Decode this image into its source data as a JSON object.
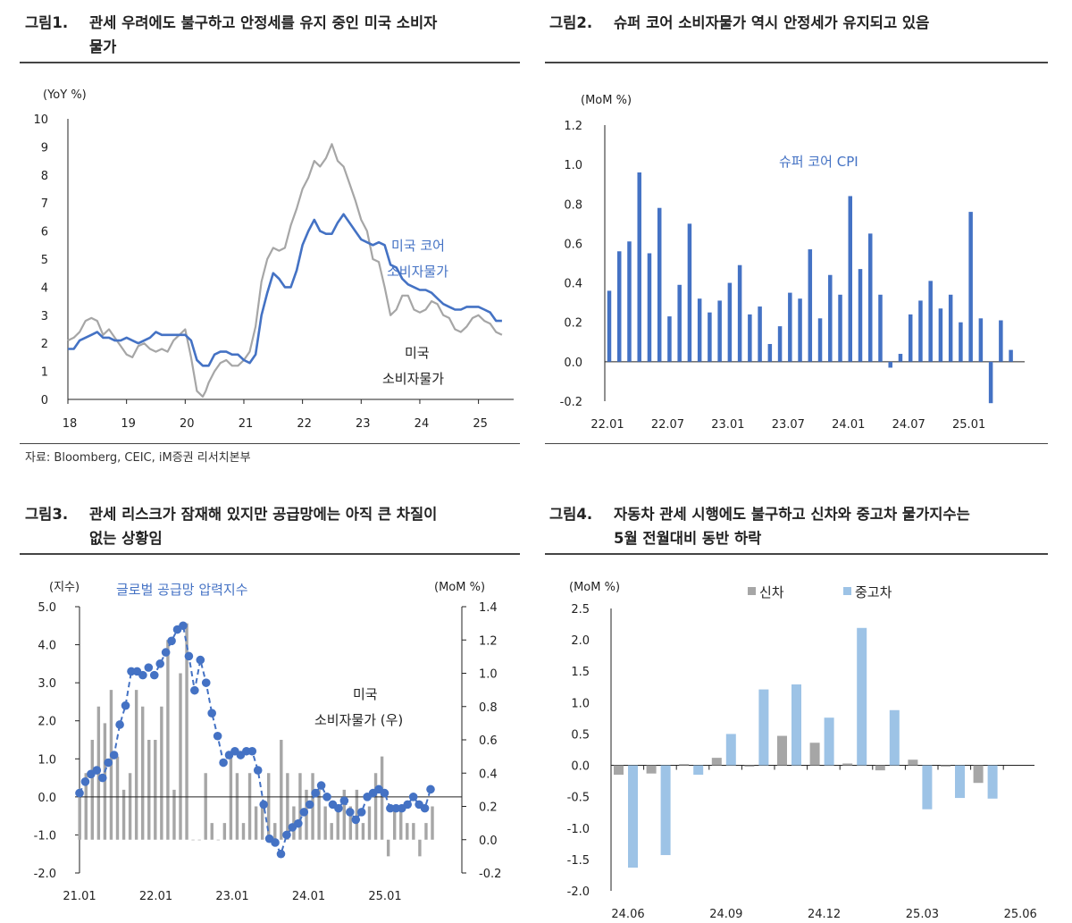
{
  "titles": {
    "p1_num": "그림1.",
    "p1_line1": "관세 우려에도 불구하고 안정세를 유지 중인 미국 소비자",
    "p1_line2": "물가",
    "p2_num": "그림2.",
    "p2_line1": "슈퍼 코어 소비자물가 역시 안정세가 유지되고 있음",
    "p3_num": "그림3.",
    "p3_line1": "관세 리스크가 잠재해 있지만 공급망에는 아직 큰 차질이",
    "p3_line2": "없는 상황임",
    "p4_num": "그림4.",
    "p4_line1": "자동차 관세 시행에도 불구하고 신차와 중고차 물가지수는",
    "p4_line2": "5월 전월대비 동반 하락"
  },
  "source": "자료: Bloomberg, CEIC, iM증권 리서치본부",
  "chart_data": [
    {
      "type": "line",
      "title": "관세 우려에도 불구하고 안정세를 유지 중인 미국 소비자 물가",
      "unit_label": "(YoY %)",
      "ylim": [
        0,
        10
      ],
      "y_ticks": [
        "0",
        "1",
        "2",
        "3",
        "4",
        "5",
        "6",
        "7",
        "8",
        "9",
        "10"
      ],
      "x_ticks": [
        "18",
        "19",
        "20",
        "21",
        "22",
        "23",
        "24",
        "25"
      ],
      "x_range": [
        2018.0,
        2025.6
      ],
      "series": [
        {
          "name": "미국 코어 소비자물가",
          "name_line1": "미국 코어",
          "name_line2": "소비자물가",
          "color": "#4472C4",
          "x": [
            2018.0,
            2018.1,
            2018.2,
            2018.3,
            2018.4,
            2018.5,
            2018.6,
            2018.7,
            2018.8,
            2018.9,
            2019.0,
            2019.1,
            2019.2,
            2019.3,
            2019.4,
            2019.5,
            2019.6,
            2019.7,
            2019.8,
            2019.9,
            2020.0,
            2020.1,
            2020.2,
            2020.3,
            2020.35,
            2020.4,
            2020.5,
            2020.6,
            2020.7,
            2020.8,
            2020.9,
            2021.0,
            2021.1,
            2021.2,
            2021.3,
            2021.4,
            2021.5,
            2021.6,
            2021.7,
            2021.8,
            2021.9,
            2022.0,
            2022.1,
            2022.2,
            2022.3,
            2022.4,
            2022.5,
            2022.6,
            2022.7,
            2022.8,
            2022.9,
            2023.0,
            2023.1,
            2023.2,
            2023.3,
            2023.4,
            2023.5,
            2023.6,
            2023.7,
            2023.8,
            2023.9,
            2024.0,
            2024.1,
            2024.2,
            2024.3,
            2024.4,
            2024.5,
            2024.6,
            2024.7,
            2024.8,
            2024.9,
            2025.0,
            2025.1,
            2025.2,
            2025.3,
            2025.4
          ],
          "values": [
            1.8,
            1.8,
            2.1,
            2.2,
            2.3,
            2.4,
            2.2,
            2.2,
            2.1,
            2.1,
            2.2,
            2.1,
            2.0,
            2.1,
            2.2,
            2.4,
            2.3,
            2.3,
            2.3,
            2.3,
            2.3,
            2.1,
            1.4,
            1.2,
            1.2,
            1.2,
            1.6,
            1.7,
            1.7,
            1.6,
            1.6,
            1.4,
            1.3,
            1.6,
            3.0,
            3.8,
            4.5,
            4.3,
            4.0,
            4.0,
            4.6,
            5.5,
            6.0,
            6.4,
            6.0,
            5.9,
            5.9,
            6.3,
            6.6,
            6.3,
            6.0,
            5.7,
            5.6,
            5.5,
            5.6,
            5.5,
            4.8,
            4.7,
            4.3,
            4.1,
            4.0,
            3.9,
            3.9,
            3.8,
            3.6,
            3.4,
            3.3,
            3.2,
            3.2,
            3.3,
            3.3,
            3.3,
            3.2,
            3.1,
            2.8,
            2.8
          ]
        },
        {
          "name": "미국 소비자물가",
          "name_line1": "미국",
          "name_line2": "소비자물가",
          "color": "#A6A6A6",
          "x": [
            2018.0,
            2018.1,
            2018.2,
            2018.3,
            2018.4,
            2018.5,
            2018.6,
            2018.7,
            2018.8,
            2018.9,
            2019.0,
            2019.1,
            2019.2,
            2019.3,
            2019.4,
            2019.5,
            2019.6,
            2019.7,
            2019.8,
            2019.9,
            2020.0,
            2020.1,
            2020.2,
            2020.3,
            2020.35,
            2020.4,
            2020.5,
            2020.6,
            2020.7,
            2020.8,
            2020.9,
            2021.0,
            2021.1,
            2021.2,
            2021.3,
            2021.4,
            2021.5,
            2021.6,
            2021.7,
            2021.8,
            2021.9,
            2022.0,
            2022.1,
            2022.2,
            2022.3,
            2022.4,
            2022.5,
            2022.6,
            2022.7,
            2022.8,
            2022.9,
            2023.0,
            2023.1,
            2023.2,
            2023.3,
            2023.4,
            2023.5,
            2023.6,
            2023.7,
            2023.8,
            2023.9,
            2024.0,
            2024.1,
            2024.2,
            2024.3,
            2024.4,
            2024.5,
            2024.6,
            2024.7,
            2024.8,
            2024.9,
            2025.0,
            2025.1,
            2025.2,
            2025.3,
            2025.4
          ],
          "values": [
            2.1,
            2.2,
            2.4,
            2.8,
            2.9,
            2.8,
            2.3,
            2.5,
            2.2,
            1.9,
            1.6,
            1.5,
            1.9,
            2.0,
            1.8,
            1.7,
            1.8,
            1.7,
            2.1,
            2.3,
            2.5,
            1.5,
            0.3,
            0.1,
            0.3,
            0.6,
            1.0,
            1.3,
            1.4,
            1.2,
            1.2,
            1.4,
            1.7,
            2.6,
            4.2,
            5.0,
            5.4,
            5.3,
            5.4,
            6.2,
            6.8,
            7.5,
            7.9,
            8.5,
            8.3,
            8.6,
            9.1,
            8.5,
            8.3,
            7.7,
            7.1,
            6.4,
            6.0,
            5.0,
            4.9,
            4.0,
            3.0,
            3.2,
            3.7,
            3.7,
            3.2,
            3.1,
            3.2,
            3.5,
            3.4,
            3.0,
            2.9,
            2.5,
            2.4,
            2.6,
            2.9,
            3.0,
            2.8,
            2.7,
            2.4,
            2.3
          ]
        }
      ]
    },
    {
      "type": "bar",
      "title": "슈퍼 코어 소비자물가 역시 안정세가 유지되고 있음",
      "unit_label": "(MoM %)",
      "legend": "슈퍼 코어 CPI",
      "color": "#4472C4",
      "ylim": [
        -0.2,
        1.2
      ],
      "y_ticks": [
        "-0.2",
        "0.0",
        "0.2",
        "0.4",
        "0.6",
        "0.8",
        "1.0",
        "1.2"
      ],
      "x_ticks": [
        "22.01",
        "22.07",
        "23.01",
        "23.07",
        "24.01",
        "24.07",
        "25.01"
      ],
      "values": [
        0.36,
        0.56,
        0.61,
        0.96,
        0.55,
        0.78,
        0.23,
        0.39,
        0.7,
        0.32,
        0.25,
        0.31,
        0.4,
        0.49,
        0.24,
        0.28,
        0.09,
        0.18,
        0.35,
        0.32,
        0.57,
        0.22,
        0.44,
        0.34,
        0.84,
        0.47,
        0.65,
        0.34,
        -0.03,
        0.04,
        0.24,
        0.31,
        0.41,
        0.27,
        0.34,
        0.2,
        0.76,
        0.22,
        -0.21,
        0.21,
        0.06
      ]
    },
    {
      "type": "bar",
      "title": "관세 리스크가 잠재해 있지만 공급망에는 아직 큰 차질이 없는 상황임",
      "left_unit_label": "(지수)",
      "right_unit_label": "(MoM %)",
      "line_legend": "글로벌 공급망 압력지수",
      "bar_label_line1": "미국",
      "bar_label_line2": "소비자물가 (우)",
      "left_ylim": [
        -2.0,
        5.0
      ],
      "right_ylim": [
        -0.2,
        1.4
      ],
      "left_ticks": [
        "5.0",
        "4.0",
        "3.0",
        "2.0",
        "1.0",
        "0.0",
        "-1.0",
        "-2.0"
      ],
      "right_ticks": [
        "1.4",
        "1.2",
        "1.0",
        "0.8",
        "0.6",
        "0.4",
        "0.2",
        "0.0",
        "-0.2"
      ],
      "x_ticks": [
        "21.01",
        "22.01",
        "23.01",
        "24.01",
        "25.01"
      ],
      "bar_color": "#A6A6A6",
      "line_color": "#4472C4",
      "bars_mom": [
        0.3,
        0.4,
        0.6,
        0.8,
        0.7,
        0.9,
        0.5,
        0.3,
        0.4,
        0.9,
        0.8,
        0.6,
        0.6,
        0.8,
        1.2,
        0.3,
        1.0,
        1.3,
        0.0,
        0.0,
        0.4,
        0.1,
        0.0,
        0.1,
        0.5,
        0.4,
        0.1,
        0.4,
        0.2,
        0.2,
        0.4,
        0.1,
        0.6,
        0.4,
        0.2,
        0.4,
        0.3,
        0.4,
        0.3,
        0.2,
        0.1,
        0.2,
        0.3,
        0.2,
        0.3,
        0.1,
        0.2,
        0.4,
        0.5,
        -0.1,
        0.2,
        0.2,
        0.1,
        0.1,
        -0.1,
        0.1,
        0.2
      ],
      "line_gscpi": [
        0.1,
        0.4,
        0.6,
        0.7,
        0.5,
        0.9,
        1.1,
        1.9,
        2.4,
        3.3,
        3.3,
        3.2,
        3.4,
        3.2,
        3.5,
        3.8,
        4.1,
        4.4,
        4.5,
        3.7,
        2.8,
        3.6,
        3.0,
        2.2,
        1.6,
        0.9,
        1.1,
        1.2,
        1.1,
        1.2,
        1.2,
        0.7,
        -0.2,
        -1.1,
        -1.2,
        -1.5,
        -1.0,
        -0.8,
        -0.7,
        -0.4,
        -0.2,
        0.1,
        0.3,
        0.0,
        -0.2,
        -0.3,
        -0.1,
        -0.4,
        -0.6,
        -0.4,
        0.0,
        0.1,
        0.2,
        0.1,
        -0.3,
        -0.3,
        -0.3,
        -0.2,
        0.0,
        -0.2,
        -0.3,
        0.2
      ]
    },
    {
      "type": "bar",
      "title": "자동차 관세 시행에도 불구하고 신차와 중고차 물가지수는 5월 전월대비 동반 하락",
      "unit_label": "(MoM %)",
      "ylim": [
        -2.0,
        2.5
      ],
      "y_ticks": [
        "2.5",
        "2.0",
        "1.5",
        "1.0",
        "0.5",
        "0.0",
        "-0.5",
        "-1.0",
        "-1.5",
        "-2.0"
      ],
      "x_ticks": [
        "24.06",
        "24.09",
        "24.12",
        "25.03",
        "25.06"
      ],
      "categories": [
        "24.06",
        "24.07",
        "24.08",
        "24.09",
        "24.10",
        "24.11",
        "24.12",
        "25.01",
        "25.02",
        "25.03",
        "25.04",
        "25.05"
      ],
      "series": [
        {
          "name": "신차",
          "color": "#A6A6A6",
          "values": [
            -0.15,
            -0.13,
            0.02,
            0.12,
            -0.02,
            0.47,
            0.36,
            0.03,
            -0.08,
            0.09,
            -0.02,
            -0.28
          ]
        },
        {
          "name": "중고차",
          "color": "#9DC3E6",
          "values": [
            -1.63,
            -1.43,
            -0.15,
            0.5,
            1.21,
            1.29,
            0.76,
            2.19,
            0.88,
            -0.7,
            -0.52,
            -0.53
          ]
        }
      ]
    }
  ]
}
